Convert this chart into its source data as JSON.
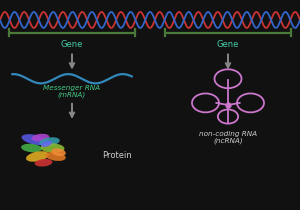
{
  "background_color": "#111111",
  "dna_strand1_color": "#cc3333",
  "dna_strand2_color": "#3366cc",
  "rung_color": "#888888",
  "gene_bar_color": "#4a7a3a",
  "arrow_color": "#888888",
  "mrna_color": "#3388bb",
  "mrna_label_color": "#44cc88",
  "ncrna_color": "#cc77cc",
  "ncrna_label_color": "#cccccc",
  "protein_label_color": "#cccccc",
  "gene_label_color": "#44ccaa",
  "gene_label": "Gene",
  "mrna_label": "Messenger RNA\n(mRNA)",
  "ncrna_label": "non-coding RNA\n(ncRNA)",
  "protein_label": "Protein",
  "fig_width": 3.0,
  "fig_height": 2.1,
  "dpi": 100
}
